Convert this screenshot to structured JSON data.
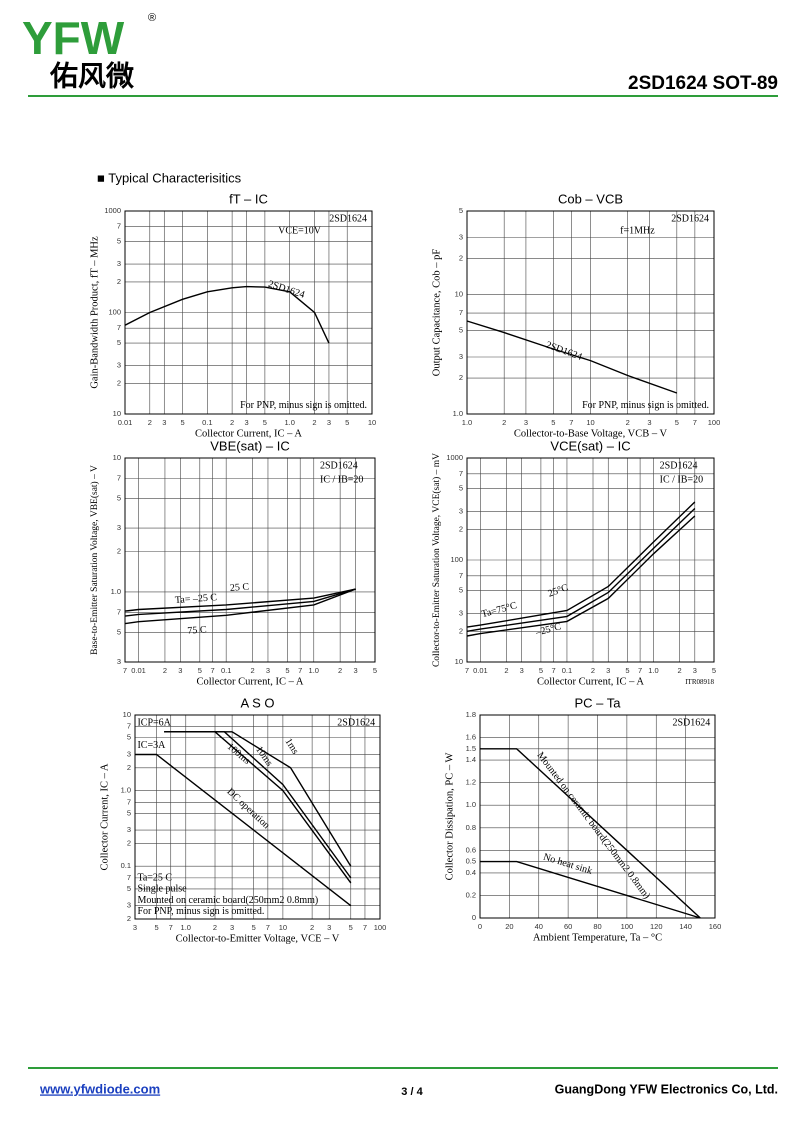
{
  "header": {
    "logo": "YFW",
    "registered": "®",
    "logo_cn": "佑风微",
    "part": "2SD1624  SOT-89"
  },
  "section": "■ Typical  Characterisitics",
  "footer": {
    "url": "www.yfwdiode.com",
    "page": "3 / 4",
    "company": "GuangDong YFW Electronics Co, Ltd."
  },
  "chart_data": [
    {
      "type": "line",
      "title": "fT  –  IC",
      "x_label": "Collector Current, IC  –  A",
      "y_label": "Gain-Bandwidth Product, fT  –  MHz",
      "xlog": true,
      "ylog": true,
      "grid": true,
      "color": "#000",
      "xlim": [
        0.01,
        10
      ],
      "ylim": [
        10,
        1000
      ],
      "xticks": [
        0.01,
        {
          "value": 0.02,
          "label": "2"
        },
        {
          "value": 0.03,
          "label": "3"
        },
        {
          "value": 0.05,
          "label": "5"
        },
        0.1,
        {
          "value": 0.2,
          "label": "2"
        },
        {
          "value": 0.3,
          "label": "3"
        },
        {
          "value": 0.5,
          "label": "5"
        },
        {
          "value": 1,
          "label": "1.0"
        },
        2,
        3,
        5,
        10
      ],
      "yticks": [
        1000,
        {
          "value": 700,
          "label": "7"
        },
        {
          "value": 500,
          "label": "5"
        },
        {
          "value": 300,
          "label": "3"
        },
        {
          "value": 200,
          "label": "2"
        },
        100,
        {
          "value": 70,
          "label": "7"
        },
        {
          "value": 50,
          "label": "5"
        },
        {
          "value": 30,
          "label": "3"
        },
        {
          "value": 20,
          "label": "2"
        },
        10
      ],
      "series": [
        {
          "name": "2SD1624",
          "x": [
            0.01,
            0.02,
            0.05,
            0.1,
            0.2,
            0.3,
            0.5,
            1,
            2,
            3
          ],
          "values": [
            75,
            100,
            135,
            160,
            175,
            180,
            178,
            160,
            100,
            50
          ]
        }
      ],
      "annotations": [
        "2SD1624",
        "VCE=10V",
        "For PNP, minus sign is omitted."
      ]
    },
    {
      "type": "line",
      "title": "Cob  –  VCB",
      "x_label": "Collector-to-Base Voltage, VCB  –  V",
      "y_label": "Output Capacitance, Cob  –  pF",
      "xlog": true,
      "ylog": true,
      "grid": true,
      "color": "#000",
      "xlim": [
        1,
        100
      ],
      "ylim": [
        1,
        50
      ],
      "xticks": [
        {
          "value": 1,
          "label": "1.0"
        },
        2,
        3,
        5,
        7,
        10,
        {
          "value": 20,
          "label": "2"
        },
        {
          "value": 30,
          "label": "3"
        },
        {
          "value": 50,
          "label": "5"
        },
        {
          "value": 70,
          "label": "7"
        },
        100
      ],
      "yticks": [
        {
          "value": 50,
          "label": "5"
        },
        {
          "value": 30,
          "label": "3"
        },
        {
          "value": 20,
          "label": "2"
        },
        10,
        7,
        5,
        3,
        2,
        {
          "value": 1,
          "label": "1.0"
        }
      ],
      "series": [
        {
          "name": "2SD1624",
          "x": [
            1,
            2,
            5,
            10,
            20,
            50
          ],
          "values": [
            6,
            4.8,
            3.5,
            2.8,
            2.1,
            1.5
          ]
        }
      ],
      "annotations": [
        "2SD1624",
        "f=1MHz",
        "For PNP, minus sign is omitted."
      ]
    },
    {
      "type": "line",
      "title": "VBE(sat)  –  IC",
      "x_label": "Collector Current, IC  –  A",
      "y_label": "Base-to-Emitter Saturation Voltage, VBE(sat)  –  V",
      "xlog": true,
      "ylog": true,
      "grid": true,
      "color": "#000",
      "xlim": [
        0.007,
        5
      ],
      "ylim": [
        0.3,
        10
      ],
      "xticks": [
        {
          "value": 0.007,
          "label": "7"
        },
        0.01,
        {
          "value": 0.02,
          "label": "2"
        },
        {
          "value": 0.03,
          "label": "3"
        },
        {
          "value": 0.05,
          "label": "5"
        },
        {
          "value": 0.07,
          "label": "7"
        },
        0.1,
        {
          "value": 0.2,
          "label": "2"
        },
        {
          "value": 0.3,
          "label": "3"
        },
        {
          "value": 0.5,
          "label": "5"
        },
        {
          "value": 0.7,
          "label": "7"
        },
        {
          "value": 1,
          "label": "1.0"
        },
        2,
        3,
        5
      ],
      "yticks": [
        10,
        7,
        5,
        3,
        2,
        {
          "value": 1,
          "label": "1.0"
        },
        {
          "value": 0.7,
          "label": "7"
        },
        {
          "value": 0.5,
          "label": "5"
        },
        {
          "value": 0.3,
          "label": "3"
        }
      ],
      "series": [
        {
          "name": "Ta= –25 C",
          "x": [
            0.007,
            0.01,
            0.1,
            1,
            3
          ],
          "values": [
            0.72,
            0.74,
            0.8,
            0.9,
            1.05
          ]
        },
        {
          "name": "25 C",
          "x": [
            0.007,
            0.01,
            0.1,
            1,
            3
          ],
          "values": [
            0.66,
            0.68,
            0.74,
            0.85,
            1.05
          ]
        },
        {
          "name": "75 C",
          "x": [
            0.007,
            0.01,
            0.1,
            1,
            3
          ],
          "values": [
            0.58,
            0.6,
            0.67,
            0.8,
            1.05
          ]
        }
      ],
      "annotations": [
        "2SD1624",
        "IC / IB=20"
      ]
    },
    {
      "type": "line",
      "title": "VCE(sat)  –  IC",
      "x_label": "Collector Current, IC  –  A",
      "y_label": "Collector-to-Emitter Saturation Voltage, VCE(sat)  –  mV",
      "xlog": true,
      "ylog": true,
      "grid": true,
      "color": "#000",
      "xlim": [
        0.007,
        5
      ],
      "ylim": [
        10,
        1000
      ],
      "xticks": [
        {
          "value": 0.007,
          "label": "7"
        },
        0.01,
        {
          "value": 0.02,
          "label": "2"
        },
        {
          "value": 0.03,
          "label": "3"
        },
        {
          "value": 0.05,
          "label": "5"
        },
        {
          "value": 0.07,
          "label": "7"
        },
        0.1,
        {
          "value": 0.2,
          "label": "2"
        },
        {
          "value": 0.3,
          "label": "3"
        },
        {
          "value": 0.5,
          "label": "5"
        },
        {
          "value": 0.7,
          "label": "7"
        },
        {
          "value": 1,
          "label": "1.0"
        },
        2,
        3,
        5
      ],
      "yticks": [
        1000,
        {
          "value": 700,
          "label": "7"
        },
        {
          "value": 500,
          "label": "5"
        },
        {
          "value": 300,
          "label": "3"
        },
        {
          "value": 200,
          "label": "2"
        },
        100,
        {
          "value": 70,
          "label": "7"
        },
        {
          "value": 50,
          "label": "5"
        },
        {
          "value": 30,
          "label": "3"
        },
        {
          "value": 20,
          "label": "2"
        },
        10
      ],
      "series": [
        {
          "name": "Ta=75°C",
          "x": [
            0.007,
            0.01,
            0.1,
            0.3,
            1,
            3
          ],
          "values": [
            22,
            23,
            32,
            55,
            150,
            370
          ]
        },
        {
          "name": "25°C",
          "x": [
            0.007,
            0.01,
            0.1,
            0.3,
            1,
            3
          ],
          "values": [
            20,
            21,
            28,
            48,
            130,
            320
          ]
        },
        {
          "name": "–25°C",
          "x": [
            0.007,
            0.01,
            0.1,
            0.3,
            1,
            3
          ],
          "values": [
            18,
            19,
            25,
            42,
            115,
            270
          ]
        }
      ],
      "annotations": [
        "2SD1624",
        "IC / IB=20",
        "ITR08918"
      ]
    },
    {
      "type": "line",
      "title": "A S O",
      "x_label": "Collector-to-Emitter Voltage, VCE  –  V",
      "y_label": "Collector Current, IC  –  A",
      "xlog": true,
      "ylog": true,
      "grid": true,
      "color": "#000",
      "xlim": [
        0.3,
        100
      ],
      "ylim": [
        0.02,
        10
      ],
      "xticks": [
        {
          "value": 0.3,
          "label": "3"
        },
        {
          "value": 0.5,
          "label": "5"
        },
        {
          "value": 0.7,
          "label": "7"
        },
        {
          "value": 1,
          "label": "1.0"
        },
        2,
        3,
        5,
        7,
        10,
        {
          "value": 20,
          "label": "2"
        },
        {
          "value": 30,
          "label": "3"
        },
        {
          "value": 50,
          "label": "5"
        },
        {
          "value": 70,
          "label": "7"
        },
        100
      ],
      "yticks": [
        10,
        {
          "value": 7,
          "label": "7"
        },
        5,
        3,
        2,
        {
          "value": 1,
          "label": "1.0"
        },
        {
          "value": 0.7,
          "label": "7"
        },
        {
          "value": 0.5,
          "label": "5"
        },
        {
          "value": 0.3,
          "label": "3"
        },
        {
          "value": 0.2,
          "label": "2"
        },
        0.1,
        {
          "value": 0.07,
          "label": "7"
        },
        {
          "value": 0.05,
          "label": "5"
        },
        {
          "value": 0.03,
          "label": "3"
        },
        {
          "value": 0.02,
          "label": "2"
        }
      ],
      "series": [
        {
          "name": "1ms",
          "x": [
            0.6,
            3,
            12,
            50
          ],
          "values": [
            6,
            6,
            2,
            0.1
          ]
        },
        {
          "name": "10ms",
          "x": [
            0.6,
            2.5,
            10,
            50
          ],
          "values": [
            6,
            6,
            1.2,
            0.07
          ]
        },
        {
          "name": "100ms",
          "x": [
            0.6,
            2,
            10,
            50
          ],
          "values": [
            6,
            6,
            1,
            0.06
          ]
        },
        {
          "name": "DC operation",
          "x": [
            0.3,
            0.5,
            50
          ],
          "values": [
            3,
            3,
            0.03
          ]
        }
      ],
      "annotations": [
        "ICP=6A",
        "IC=3A",
        "2SD1624",
        "Ta=25 C",
        "Single pulse",
        "Mounted on ceramic board(250mm2  0.8mm)",
        "For PNP, minus sign is omitted."
      ]
    },
    {
      "type": "line",
      "title": "PC  –  Ta",
      "x_label": "Ambient Temperature, Ta  –  °C",
      "y_label": "Collector Dissipation, PC  –  W",
      "xlog": false,
      "ylog": false,
      "grid": true,
      "color": "#000",
      "xlim": [
        0,
        160
      ],
      "ylim": [
        0,
        1.8
      ],
      "xticks": [
        0,
        20,
        40,
        60,
        80,
        100,
        120,
        140,
        160
      ],
      "yticks": [
        0,
        0.2,
        0.4,
        0.5,
        0.6,
        0.8,
        {
          "value": 1,
          "label": "1.0"
        },
        1.2,
        1.4,
        1.5,
        1.6,
        1.8
      ],
      "series": [
        {
          "name": "Mounted on ceramic board(250mm2  0.8mm)",
          "x": [
            0,
            25,
            150
          ],
          "values": [
            1.5,
            1.5,
            0
          ]
        },
        {
          "name": "No heat sink",
          "x": [
            0,
            25,
            150
          ],
          "values": [
            0.5,
            0.5,
            0
          ]
        }
      ],
      "annotations": [
        "2SD1624"
      ]
    }
  ]
}
